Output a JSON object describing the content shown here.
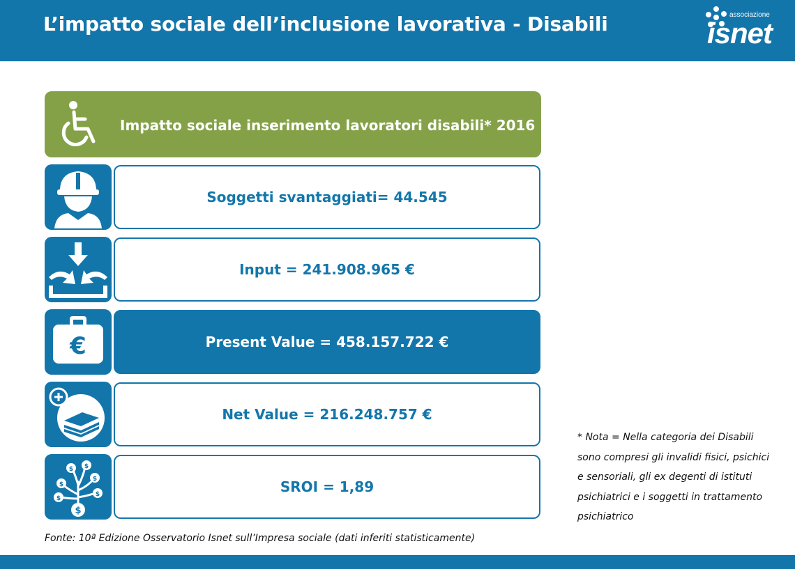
{
  "header": {
    "title": "L’impatto sociale dell’inclusione lavorativa - Disabili",
    "logo_small": "associazione",
    "logo_big": "isnet"
  },
  "banner": {
    "label": "Impatto sociale inserimento lavoratori disabili* 2016",
    "icon": "wheelchair-icon"
  },
  "rows": [
    {
      "label": "Soggetti svantaggiati= 44.545",
      "icon": "worker-icon"
    },
    {
      "label": "Input = 241.908.965 €",
      "icon": "input-arrows-icon"
    },
    {
      "label": "Present Value = 458.157.722 €",
      "icon": "euro-briefcase-icon"
    },
    {
      "label": "Net Value = 216.248.757 €",
      "icon": "money-plus-icon"
    },
    {
      "label": "SROI = 1,89",
      "icon": "money-tree-icon"
    }
  ],
  "note": {
    "lines": [
      "* Nota = Nella categoria dei Disabili",
      "sono compresi gli invalidi fisici, psichici",
      "e sensoriali, gli ex degenti di istituti",
      "psichiatrici e i soggetti in trattamento",
      "psichiatrico"
    ]
  },
  "source": "Fonte: 10ª Edizione Osservatorio Isnet sull’Impresa sociale (dati inferiti statisticamente)",
  "colors": {
    "primary_blue": "#1376ab",
    "green": "#84a148",
    "white": "#ffffff"
  }
}
